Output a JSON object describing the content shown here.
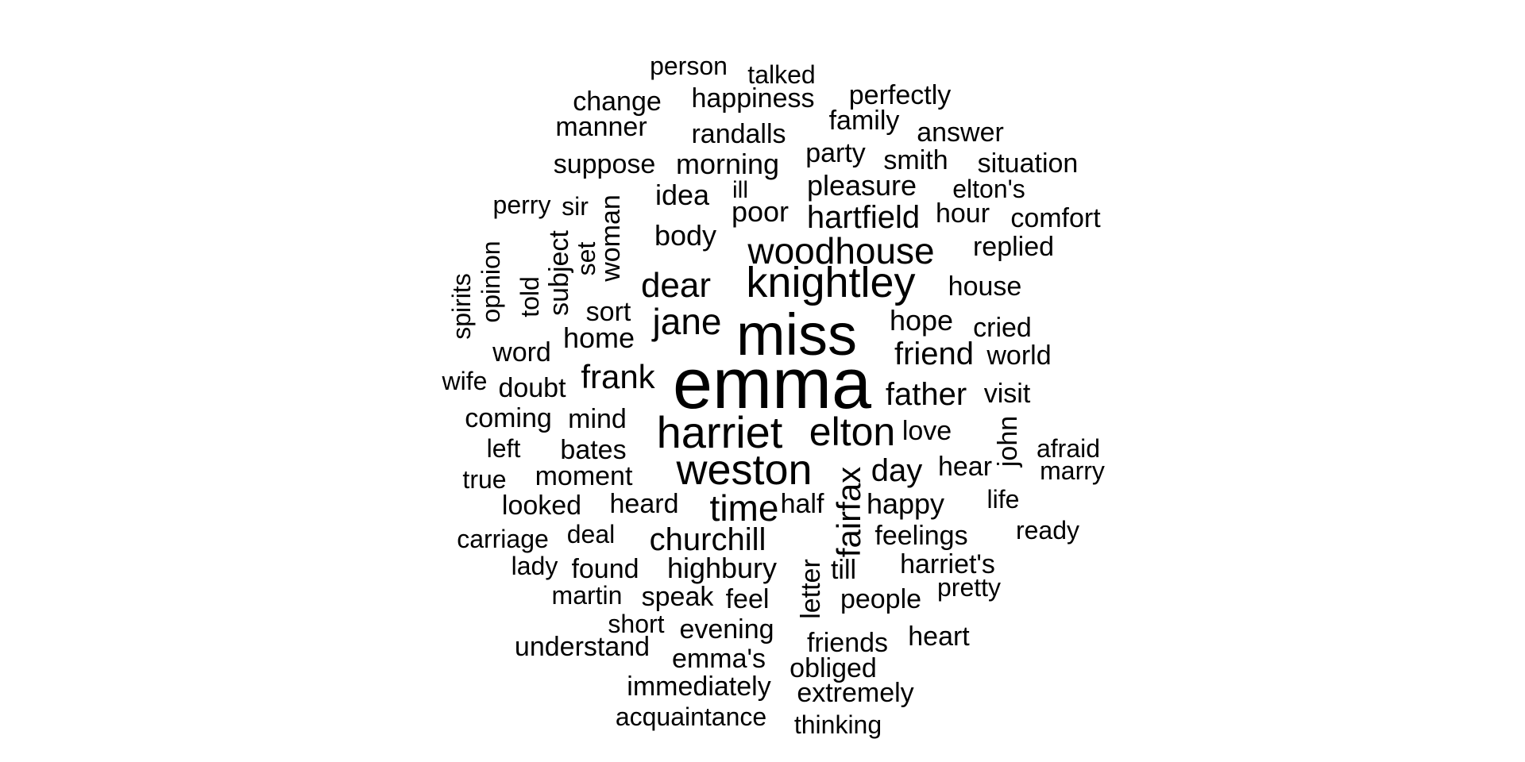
{
  "words": [
    {
      "text": "emma",
      "weight": 100
    },
    {
      "text": "miss",
      "weight": 82
    },
    {
      "text": "harriet",
      "weight": 64
    },
    {
      "text": "weston",
      "weight": 62
    },
    {
      "text": "knightley",
      "weight": 60
    },
    {
      "text": "elton",
      "weight": 56
    },
    {
      "text": "woodhouse",
      "weight": 50
    },
    {
      "text": "jane",
      "weight": 50
    },
    {
      "text": "time",
      "weight": 48
    },
    {
      "text": "dear",
      "weight": 48
    },
    {
      "text": "frank",
      "weight": 46
    },
    {
      "text": "fairfax",
      "weight": 44
    },
    {
      "text": "churchill",
      "weight": 44
    },
    {
      "text": "father",
      "weight": 41
    },
    {
      "text": "friend",
      "weight": 40
    },
    {
      "text": "day",
      "weight": 40
    },
    {
      "text": "hartfield",
      "weight": 38
    },
    {
      "text": "body",
      "weight": 38
    },
    {
      "text": "pleasure",
      "weight": 37
    },
    {
      "text": "morning",
      "weight": 37
    },
    {
      "text": "hope",
      "weight": 37
    },
    {
      "text": "home",
      "weight": 37
    },
    {
      "text": "idea",
      "weight": 36
    },
    {
      "text": "happy",
      "weight": 36
    },
    {
      "text": "highbury",
      "weight": 36
    },
    {
      "text": "poor",
      "weight": 36
    },
    {
      "text": "love",
      "weight": 35
    },
    {
      "text": "heard",
      "weight": 35
    },
    {
      "text": "half",
      "weight": 35
    },
    {
      "text": "hear",
      "weight": 35
    },
    {
      "text": "feelings",
      "weight": 34
    },
    {
      "text": "sort",
      "weight": 34
    },
    {
      "text": "woman",
      "weight": 34
    },
    {
      "text": "speak",
      "weight": 34
    },
    {
      "text": "suppose",
      "weight": 34
    },
    {
      "text": "party",
      "weight": 34
    },
    {
      "text": "mind",
      "weight": 34
    },
    {
      "text": "smith",
      "weight": 33
    },
    {
      "text": "bates",
      "weight": 33
    },
    {
      "text": "randalls",
      "weight": 33
    },
    {
      "text": "evening",
      "weight": 33
    },
    {
      "text": "letter",
      "weight": 33
    },
    {
      "text": "happiness",
      "weight": 33
    },
    {
      "text": "subject",
      "weight": 32
    },
    {
      "text": "moment",
      "weight": 32
    },
    {
      "text": "house",
      "weight": 32
    },
    {
      "text": "replied",
      "weight": 32
    },
    {
      "text": "people",
      "weight": 32
    },
    {
      "text": "emma's",
      "weight": 32
    },
    {
      "text": "friends",
      "weight": 32
    },
    {
      "text": "situation",
      "weight": 31
    },
    {
      "text": "world",
      "weight": 31
    },
    {
      "text": "cried",
      "weight": 31
    },
    {
      "text": "hour",
      "weight": 31
    },
    {
      "text": "doubt",
      "weight": 31
    },
    {
      "text": "found",
      "weight": 31
    },
    {
      "text": "family",
      "weight": 31
    },
    {
      "text": "change",
      "weight": 31
    },
    {
      "text": "manner",
      "weight": 31
    },
    {
      "text": "perfectly",
      "weight": 31
    },
    {
      "text": "comfort",
      "weight": 31
    },
    {
      "text": "obliged",
      "weight": 31
    },
    {
      "text": "immediately",
      "weight": 31
    },
    {
      "text": "john",
      "weight": 31
    },
    {
      "text": "harriet's",
      "weight": 30
    },
    {
      "text": "word",
      "weight": 30
    },
    {
      "text": "looked",
      "weight": 30
    },
    {
      "text": "coming",
      "weight": 30
    },
    {
      "text": "visit",
      "weight": 30
    },
    {
      "text": "answer",
      "weight": 30
    },
    {
      "text": "extremely",
      "weight": 30
    },
    {
      "text": "till",
      "weight": 30
    },
    {
      "text": "feel",
      "weight": 30
    },
    {
      "text": "heart",
      "weight": 30
    },
    {
      "text": "understand",
      "weight": 30
    },
    {
      "text": "afraid",
      "weight": 30
    },
    {
      "text": "deal",
      "weight": 30
    },
    {
      "text": "elton's",
      "weight": 29
    },
    {
      "text": "perry",
      "weight": 29
    },
    {
      "text": "pretty",
      "weight": 29
    },
    {
      "text": "left",
      "weight": 29
    },
    {
      "text": "person",
      "weight": 29
    },
    {
      "text": "talked",
      "weight": 29
    },
    {
      "text": "life",
      "weight": 29
    },
    {
      "text": "carriage",
      "weight": 29
    },
    {
      "text": "marry",
      "weight": 29
    },
    {
      "text": "ready",
      "weight": 29
    },
    {
      "text": "lady",
      "weight": 29
    },
    {
      "text": "martin",
      "weight": 29
    },
    {
      "text": "short",
      "weight": 29
    },
    {
      "text": "acquaintance",
      "weight": 29
    },
    {
      "text": "thinking",
      "weight": 29
    },
    {
      "text": "wife",
      "weight": 29
    },
    {
      "text": "true",
      "weight": 29
    },
    {
      "text": "sir",
      "weight": 29
    },
    {
      "text": "set",
      "weight": 29
    },
    {
      "text": "opinion",
      "weight": 29
    },
    {
      "text": "told",
      "weight": 29
    },
    {
      "text": "spirits",
      "weight": 29
    },
    {
      "text": "ill",
      "weight": 29
    }
  ]
}
